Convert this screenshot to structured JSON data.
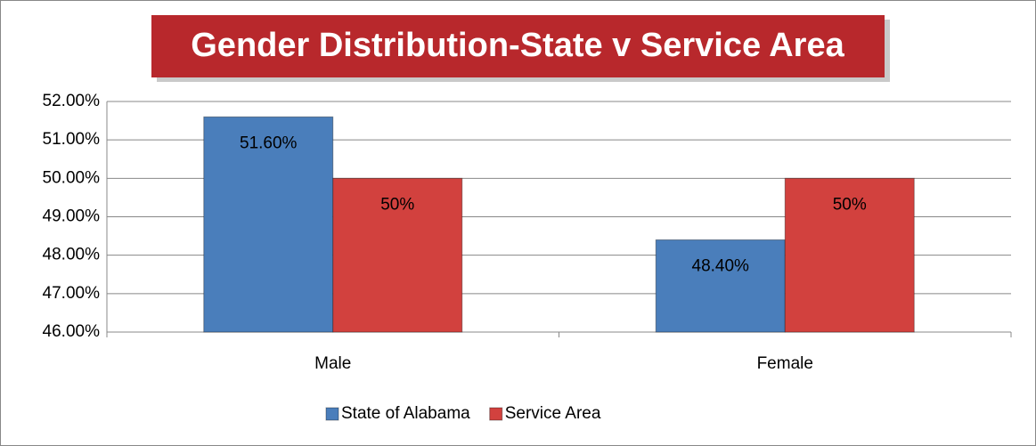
{
  "chart_data": {
    "type": "bar",
    "title": "Gender Distribution-State v Service Area",
    "categories": [
      "Male",
      "Female"
    ],
    "series": [
      {
        "name": "State of Alabama",
        "color": "#4a7ebb",
        "values": [
          51.6,
          48.4
        ],
        "value_labels": [
          "51.60%",
          "48.40%"
        ]
      },
      {
        "name": "Service Area",
        "color": "#d2413e",
        "values": [
          50,
          50
        ],
        "value_labels": [
          "50%",
          "50%"
        ]
      }
    ],
    "ylim": [
      46,
      52
    ],
    "yticks": [
      {
        "value": 46,
        "label": "46.00%"
      },
      {
        "value": 47,
        "label": "47.00%"
      },
      {
        "value": 48,
        "label": "48.00%"
      },
      {
        "value": 49,
        "label": "49.00%"
      },
      {
        "value": 50,
        "label": "50.00%"
      },
      {
        "value": 51,
        "label": "51.00%"
      },
      {
        "value": 52,
        "label": "52.00%"
      }
    ],
    "grid": true,
    "legend": "bottom"
  }
}
